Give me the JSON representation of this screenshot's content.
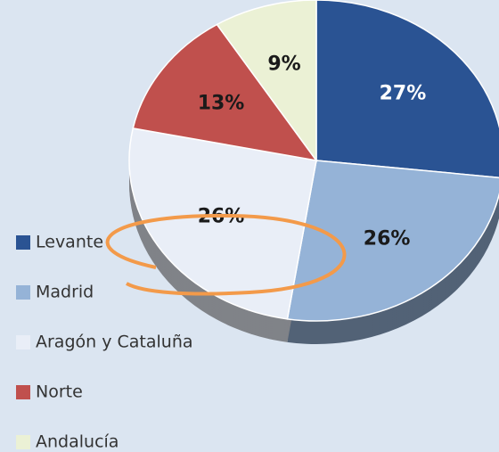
{
  "chart_data": {
    "type": "pie",
    "categories": [
      "Levante",
      "Madrid",
      "Aragón y Cataluña",
      "Norte",
      "Andalucía"
    ],
    "values": [
      27,
      26,
      26,
      13,
      9
    ],
    "value_labels": [
      "27%",
      "26%",
      "26%",
      "13%",
      "9%"
    ],
    "colors": [
      "#2a5393",
      "#95b3d7",
      "#e9eef7",
      "#c0504d",
      "#ebf1d5"
    ],
    "label_colors": [
      "#ffffff",
      "#1a1a1a",
      "#1a1a1a",
      "#1a1a1a",
      "#1a1a1a"
    ]
  }
}
